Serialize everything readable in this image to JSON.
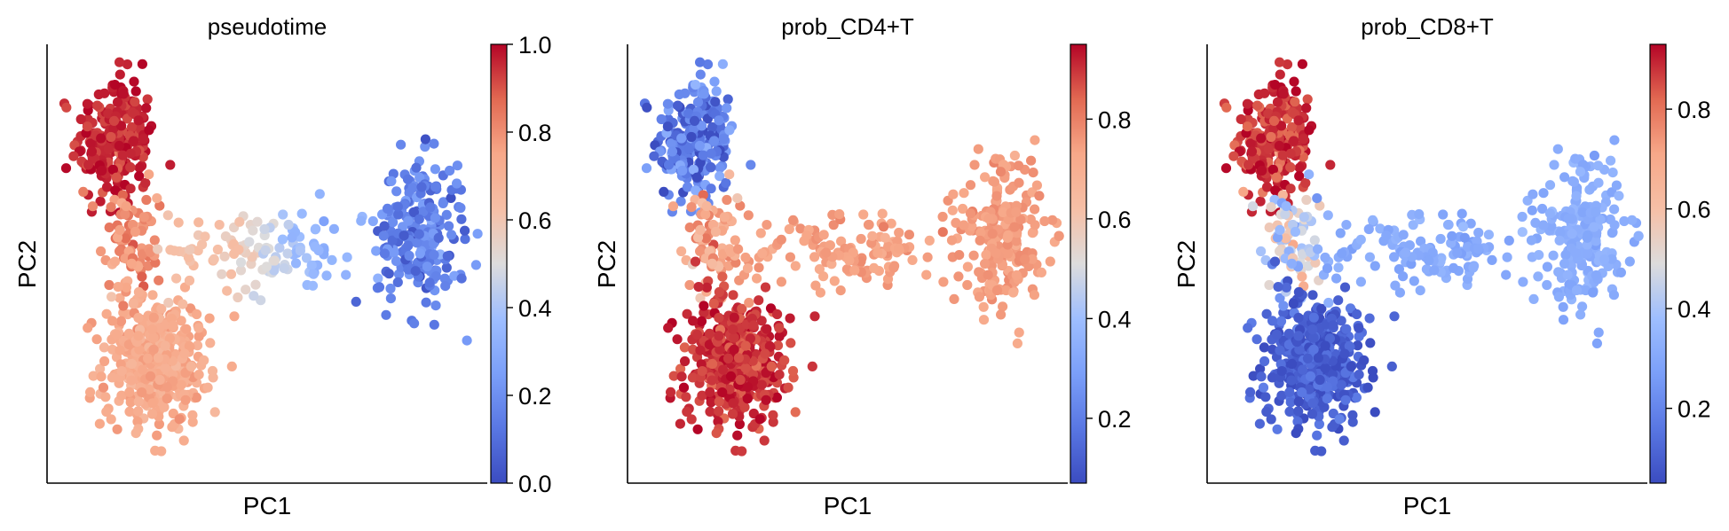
{
  "chart_data": [
    {
      "type": "scatter",
      "title": "pseudotime",
      "xlabel": "PC1",
      "ylabel": "PC2",
      "colormap": "coolwarm",
      "colorbar": {
        "ticks": [
          0.0,
          0.2,
          0.4,
          0.6,
          0.8,
          1.0
        ],
        "tick_labels": [
          "0.0",
          "0.2",
          "0.4",
          "0.6",
          "0.8",
          "1.0"
        ],
        "range": [
          0.0,
          1.0
        ]
      },
      "grid": false,
      "x_ticks_shown": false,
      "y_ticks_shown": false,
      "xlim": [
        0,
        1
      ],
      "ylim": [
        0,
        1
      ],
      "clusters": [
        {
          "name": "upper-left",
          "x": 0.155,
          "y": 0.78,
          "sx": 0.045,
          "sy": 0.075,
          "n": 230,
          "value": 0.96,
          "spread": 0.03
        },
        {
          "name": "stem",
          "x": 0.19,
          "y": 0.55,
          "sx": 0.03,
          "sy": 0.055,
          "n": 80,
          "value": 0.8,
          "spread": 0.04
        },
        {
          "name": "lower",
          "x": 0.245,
          "y": 0.28,
          "sx": 0.06,
          "sy": 0.075,
          "n": 420,
          "value": 0.73,
          "spread": 0.03
        },
        {
          "name": "bridge",
          "x": 0.5,
          "y": 0.53,
          "sx": 0.11,
          "sy": 0.05,
          "n": 130,
          "value": 0.5,
          "spread": 0.08
        },
        {
          "name": "right",
          "x": 0.85,
          "y": 0.57,
          "sx": 0.05,
          "sy": 0.085,
          "n": 220,
          "value": 0.15,
          "spread": 0.06
        }
      ]
    },
    {
      "type": "scatter",
      "title": "prob_CD4+T",
      "xlabel": "PC1",
      "ylabel": "PC2",
      "colormap": "coolwarm",
      "colorbar": {
        "ticks": [
          0.2,
          0.4,
          0.6,
          0.8
        ],
        "tick_labels": [
          "0.2",
          "0.4",
          "0.6",
          "0.8"
        ],
        "range": [
          0.07,
          0.95
        ]
      },
      "grid": false,
      "x_ticks_shown": false,
      "y_ticks_shown": false,
      "xlim": [
        0,
        1
      ],
      "ylim": [
        0,
        1
      ],
      "clusters": [
        {
          "name": "upper-left",
          "x": 0.155,
          "y": 0.78,
          "sx": 0.045,
          "sy": 0.075,
          "n": 230,
          "value": 0.2,
          "spread": 0.08
        },
        {
          "name": "stem",
          "x": 0.19,
          "y": 0.55,
          "sx": 0.03,
          "sy": 0.055,
          "n": 80,
          "value": 0.72,
          "spread": 0.06
        },
        {
          "name": "lower",
          "x": 0.245,
          "y": 0.28,
          "sx": 0.06,
          "sy": 0.075,
          "n": 420,
          "value": 0.9,
          "spread": 0.03
        },
        {
          "name": "bridge",
          "x": 0.5,
          "y": 0.53,
          "sx": 0.11,
          "sy": 0.05,
          "n": 130,
          "value": 0.75,
          "spread": 0.02
        },
        {
          "name": "right",
          "x": 0.85,
          "y": 0.57,
          "sx": 0.05,
          "sy": 0.085,
          "n": 220,
          "value": 0.75,
          "spread": 0.02
        }
      ]
    },
    {
      "type": "scatter",
      "title": "prob_CD8+T",
      "xlabel": "PC1",
      "ylabel": "PC2",
      "colormap": "coolwarm",
      "colorbar": {
        "ticks": [
          0.2,
          0.4,
          0.6,
          0.8
        ],
        "tick_labels": [
          "0.2",
          "0.4",
          "0.6",
          "0.8"
        ],
        "range": [
          0.05,
          0.93
        ]
      },
      "grid": false,
      "x_ticks_shown": false,
      "y_ticks_shown": false,
      "xlim": [
        0,
        1
      ],
      "ylim": [
        0,
        1
      ],
      "clusters": [
        {
          "name": "upper-left",
          "x": 0.155,
          "y": 0.78,
          "sx": 0.045,
          "sy": 0.075,
          "n": 230,
          "value": 0.88,
          "spread": 0.04
        },
        {
          "name": "stem",
          "x": 0.19,
          "y": 0.55,
          "sx": 0.03,
          "sy": 0.055,
          "n": 80,
          "value": 0.45,
          "spread": 0.1
        },
        {
          "name": "lower",
          "x": 0.245,
          "y": 0.28,
          "sx": 0.06,
          "sy": 0.075,
          "n": 420,
          "value": 0.1,
          "spread": 0.04
        },
        {
          "name": "bridge",
          "x": 0.5,
          "y": 0.53,
          "sx": 0.11,
          "sy": 0.05,
          "n": 130,
          "value": 0.32,
          "spread": 0.02
        },
        {
          "name": "right",
          "x": 0.85,
          "y": 0.57,
          "sx": 0.05,
          "sy": 0.085,
          "n": 220,
          "value": 0.32,
          "spread": 0.02
        }
      ]
    }
  ]
}
